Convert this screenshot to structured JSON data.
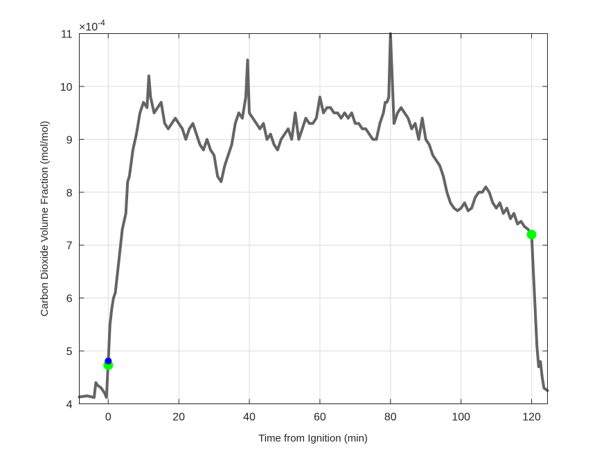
{
  "chart_data": {
    "type": "line",
    "title": "",
    "xlabel": "Time from Ignition (min)",
    "ylabel": "Carbon Dioxide Volume Fraction (mol/mol)",
    "y_exponent_label": "×10",
    "y_exponent": "-4",
    "xlim": [
      -8.2,
      124.5
    ],
    "ylim": [
      4,
      11
    ],
    "xticks": [
      0,
      20,
      40,
      60,
      80,
      100,
      120
    ],
    "yticks": [
      4,
      5,
      6,
      7,
      8,
      9,
      10,
      11
    ],
    "grid": true,
    "series": [
      {
        "name": "CO2 volume fraction",
        "color": "#646464",
        "x": [
          -8.2,
          -6,
          -4,
          -3.5,
          -3,
          -2,
          -1,
          -0.5,
          0,
          0.5,
          1,
          1.5,
          2,
          3,
          4,
          5,
          5.5,
          6,
          7,
          8,
          9,
          10,
          11,
          11.5,
          12,
          13,
          14,
          15,
          16,
          17,
          18,
          19,
          20,
          21,
          22,
          23,
          24,
          25,
          26,
          27,
          28,
          29,
          30,
          31,
          32,
          33,
          34,
          35,
          36,
          37,
          38,
          39,
          39.5,
          40,
          41,
          42,
          43,
          44,
          45,
          46,
          47,
          48,
          49,
          50,
          51,
          52,
          53,
          54,
          55,
          56,
          57,
          58,
          59,
          60,
          61,
          62,
          63,
          64,
          65,
          66,
          67,
          68,
          69,
          70,
          71,
          72,
          73,
          74,
          75,
          76,
          77,
          78,
          78.5,
          79,
          79.5,
          80,
          81,
          82,
          83,
          84,
          85,
          86,
          87,
          88,
          89,
          90,
          91,
          92,
          93,
          94,
          95,
          96,
          97,
          98,
          99,
          100,
          101,
          102,
          103,
          104,
          105,
          106,
          107,
          108,
          109,
          110,
          111,
          112,
          113,
          114,
          115,
          116,
          117,
          118,
          119,
          120,
          120.5,
          121,
          121.5,
          122,
          122.5,
          123,
          123.5,
          124.5
        ],
        "y": [
          4.13,
          4.15,
          4.12,
          4.4,
          4.35,
          4.3,
          4.2,
          4.12,
          4.8,
          5.5,
          5.8,
          6.0,
          6.1,
          6.7,
          7.3,
          7.6,
          8.2,
          8.3,
          8.8,
          9.1,
          9.5,
          9.7,
          9.6,
          10.2,
          9.8,
          9.5,
          9.6,
          9.7,
          9.3,
          9.2,
          9.3,
          9.4,
          9.3,
          9.2,
          9.0,
          9.2,
          9.3,
          9.1,
          8.9,
          8.8,
          9.0,
          8.8,
          8.7,
          8.3,
          8.2,
          8.5,
          8.7,
          8.9,
          9.3,
          9.5,
          9.4,
          9.8,
          10.5,
          9.5,
          9.4,
          9.3,
          9.2,
          9.3,
          9.0,
          9.1,
          8.9,
          8.8,
          9.0,
          9.1,
          9.2,
          9.0,
          9.5,
          9.0,
          9.2,
          9.4,
          9.3,
          9.3,
          9.4,
          9.8,
          9.5,
          9.6,
          9.6,
          9.5,
          9.5,
          9.4,
          9.5,
          9.4,
          9.5,
          9.3,
          9.3,
          9.2,
          9.2,
          9.1,
          9.0,
          9.0,
          9.3,
          9.5,
          9.7,
          9.7,
          9.8,
          11.0,
          9.3,
          9.5,
          9.6,
          9.5,
          9.4,
          9.2,
          9.3,
          9.0,
          9.4,
          9.0,
          8.9,
          8.7,
          8.6,
          8.5,
          8.3,
          8.0,
          7.8,
          7.7,
          7.65,
          7.7,
          7.8,
          7.65,
          7.7,
          7.9,
          8.0,
          8.0,
          8.1,
          8.0,
          7.8,
          7.7,
          7.8,
          7.6,
          7.7,
          7.5,
          7.6,
          7.4,
          7.45,
          7.35,
          7.3,
          7.2,
          6.5,
          5.8,
          5.1,
          4.7,
          4.8,
          4.5,
          4.3,
          4.25
        ]
      }
    ],
    "markers": [
      {
        "name": "ignition-green",
        "x": 0,
        "y": 4.73,
        "color": "#00ff00"
      },
      {
        "name": "ignition-blue",
        "x": 0,
        "y": 4.81,
        "color": "#0000ff"
      },
      {
        "name": "end-green",
        "x": 120,
        "y": 7.2,
        "color": "#00ff00"
      }
    ]
  }
}
